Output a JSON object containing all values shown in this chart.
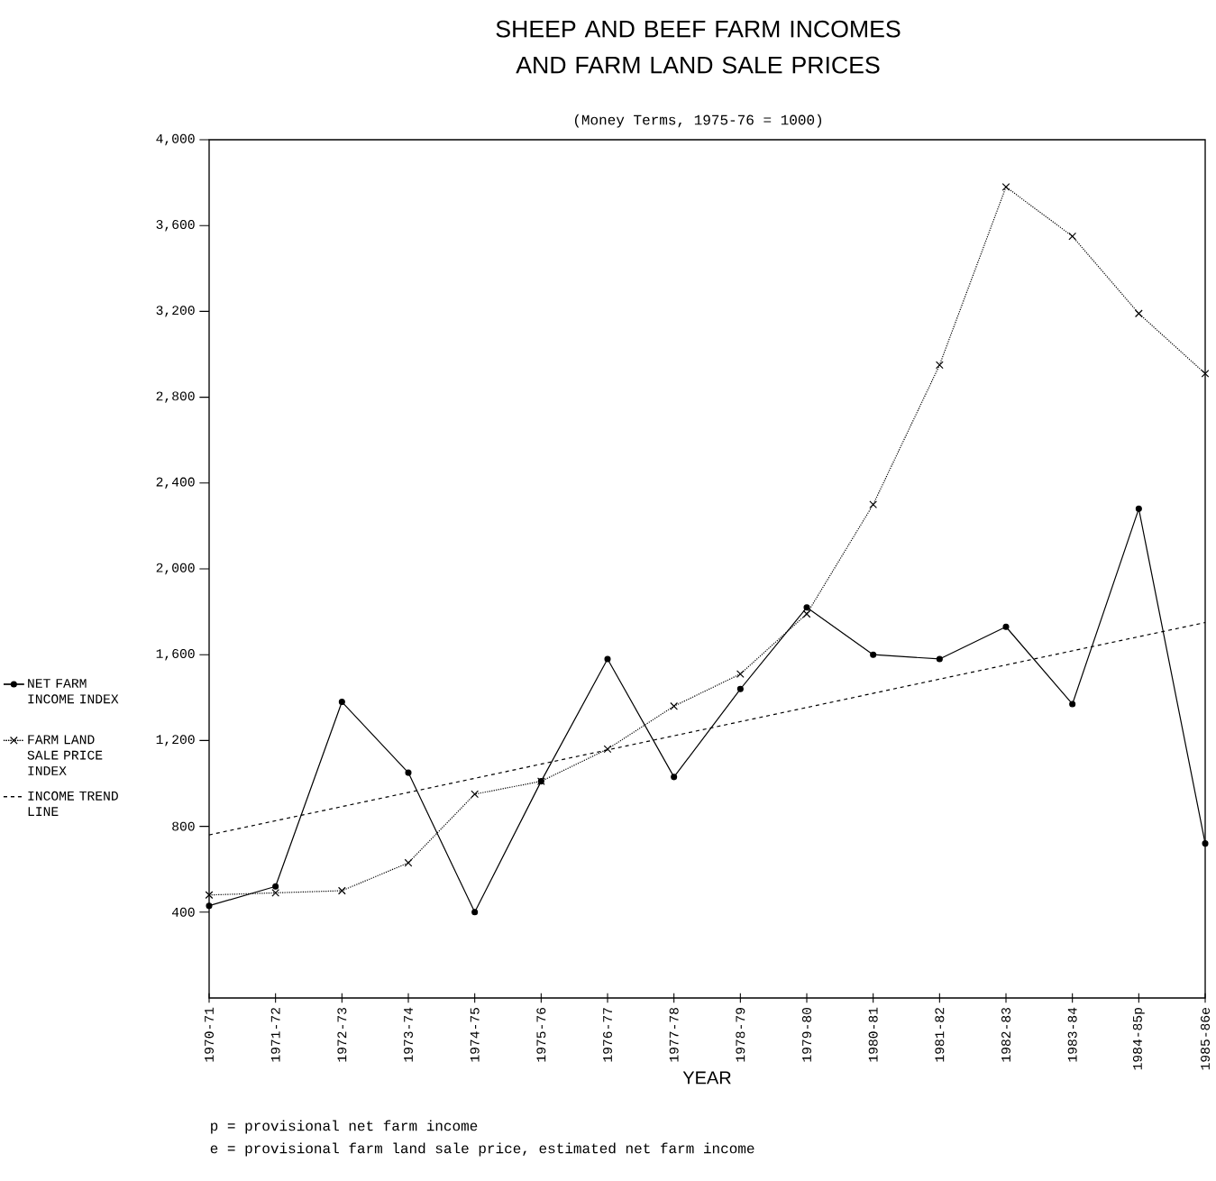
{
  "chart_data": {
    "type": "line",
    "title": "SHEEP AND BEEF FARM INCOMES AND FARM LAND SALE PRICES",
    "subtitle": "(Money Terms, 1975-76 = 1000)",
    "xlabel": "YEAR",
    "categories": [
      "1970-71",
      "1971-72",
      "1972-73",
      "1973-74",
      "1974-75",
      "1975-76",
      "1976-77",
      "1977-78",
      "1978-79",
      "1979-80",
      "1980-81",
      "1981-82",
      "1982-83",
      "1983-84",
      "1984-85p",
      "1985-86e"
    ],
    "series": [
      {
        "name": "NET FARM INCOME INDEX",
        "color": "#000000",
        "marker": "circle",
        "line_style": "solid",
        "values": [
          430,
          520,
          1380,
          1050,
          400,
          1010,
          1580,
          1030,
          1440,
          1820,
          1600,
          1580,
          1730,
          1370,
          2280,
          720
        ]
      },
      {
        "name": "FARM LAND SALE PRICE INDEX",
        "color": "#000000",
        "marker": "cross",
        "line_style": "dotted",
        "values": [
          480,
          490,
          500,
          630,
          950,
          1010,
          1160,
          1360,
          1510,
          1790,
          2300,
          2950,
          3780,
          3550,
          3190,
          2910
        ]
      },
      {
        "name": "INCOME TREND LINE",
        "type": "line",
        "color": "#000000",
        "marker": "none",
        "line_style": "dashed",
        "values": [
          760,
          null,
          null,
          null,
          null,
          null,
          null,
          null,
          null,
          null,
          null,
          null,
          null,
          null,
          null,
          1750
        ]
      }
    ],
    "ylim": [
      0,
      4000
    ],
    "yticks": [
      400,
      800,
      {
        "value": 1200,
        "label": "1,200"
      },
      {
        "value": 1600,
        "label": "1,600"
      },
      {
        "value": 2000,
        "label": "2,000"
      },
      {
        "value": 2400,
        "label": "2,400"
      },
      {
        "value": 2800,
        "label": "2,800"
      },
      {
        "value": 3200,
        "label": "3,200"
      },
      {
        "value": 3600,
        "label": "3,600"
      },
      {
        "value": 4000,
        "label": "4,000"
      }
    ],
    "legend": "left",
    "annotations": [
      "p = provisional net farm income",
      "e = provisional farm land sale price, estimated net farm income"
    ]
  }
}
